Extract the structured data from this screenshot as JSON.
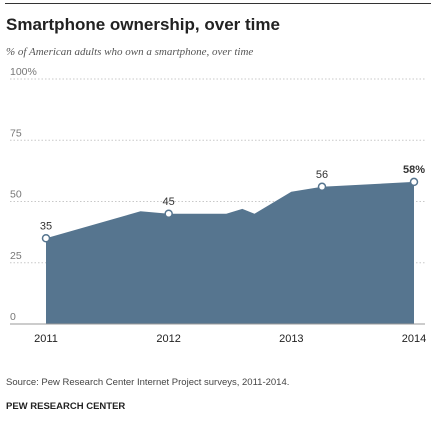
{
  "title": "Smartphone ownership, over time",
  "subtitle": "% of American adults who own a smartphone, over time",
  "chart_data": {
    "type": "area",
    "y_ticks": [
      "0",
      "25",
      "50",
      "75",
      "100%"
    ],
    "y_tick_values": [
      0,
      25,
      50,
      75,
      100
    ],
    "ylim": [
      0,
      100
    ],
    "x_tick_labels": [
      "2011",
      "2012",
      "2013",
      "2014"
    ],
    "x_tick_values": [
      2011,
      2012,
      2013,
      2014
    ],
    "xlim": [
      2011,
      2014
    ],
    "grid": true,
    "series": [
      {
        "color": "#56758f",
        "points": [
          {
            "x": 2011.0,
            "y": 35
          },
          {
            "x": 2011.77,
            "y": 46
          },
          {
            "x": 2012.0,
            "y": 45
          },
          {
            "x": 2012.47,
            "y": 45
          },
          {
            "x": 2012.6,
            "y": 47
          },
          {
            "x": 2012.7,
            "y": 45
          },
          {
            "x": 2013.0,
            "y": 54
          },
          {
            "x": 2013.25,
            "y": 56
          },
          {
            "x": 2014.0,
            "y": 58
          }
        ]
      }
    ],
    "labeled_points": [
      {
        "x": 2011.0,
        "y": 35,
        "label": "35",
        "bold": false
      },
      {
        "x": 2012.0,
        "y": 45,
        "label": "45",
        "bold": false
      },
      {
        "x": 2013.25,
        "y": 56,
        "label": "56",
        "bold": false
      },
      {
        "x": 2014.0,
        "y": 58,
        "label": "58%",
        "bold": true
      }
    ],
    "colors": {
      "area": "#56758f",
      "grid": "#c8c8c8",
      "tick_text": "#777777",
      "x_text": "#222222",
      "label_text": "#333333",
      "marker_fill": "#ffffff",
      "marker_stroke": "#56758f"
    }
  },
  "source": "Source: Pew Research Center Internet Project surveys, 2011-2014.",
  "org": "PEW RESEARCH CENTER"
}
